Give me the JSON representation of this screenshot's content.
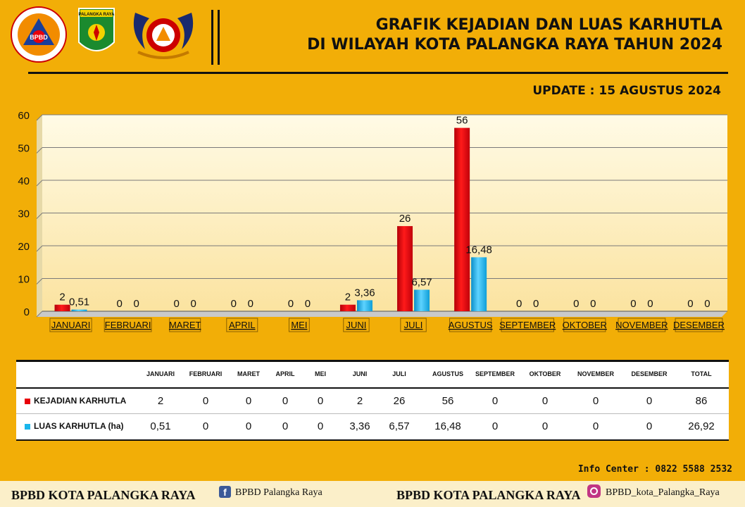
{
  "header": {
    "title_line1": "GRAFIK KEJADIAN DAN LUAS KARHUTLA",
    "title_line2": "DI WILAYAH KOTA PALANGKA RAYA TAHUN 2024",
    "update": "UPDATE : 15 AGUSTUS 2024",
    "logos": [
      {
        "name": "bpbd-logo",
        "text": "BPBD",
        "ring_text": "BADAN PENANGGULANGAN BENCANA DAERAH · KOTA PALANGKA RAYA"
      },
      {
        "name": "palangka-raya-emblem",
        "text": "PALANGKA RAYA"
      },
      {
        "name": "pusdalops-logo",
        "text": "PUSDALOPS"
      }
    ]
  },
  "chart_data": {
    "type": "bar",
    "categories": [
      "JANUARI",
      "FEBRUARI",
      "MARET",
      "APRIL",
      "MEI",
      "JUNI",
      "JULI",
      "AGUSTUS",
      "SEPTEMBER",
      "OKTOBER",
      "NOVEMBER",
      "DESEMBER"
    ],
    "series": [
      {
        "name": "KEJADIAN KARHUTLA",
        "color": "#E8000B",
        "values": [
          2,
          0,
          0,
          0,
          0,
          2,
          26,
          56,
          0,
          0,
          0,
          0
        ],
        "labels": [
          "2",
          "0",
          "0",
          "0",
          "0",
          "2",
          "26",
          "56",
          "0",
          "0",
          "0",
          "0"
        ]
      },
      {
        "name": "LUAS KARHUTLA (ha)",
        "color": "#19B6EC",
        "values": [
          0.51,
          0,
          0,
          0,
          0,
          3.36,
          6.57,
          16.48,
          0,
          0,
          0,
          0
        ],
        "labels": [
          "0,51",
          "0",
          "0",
          "0",
          "0",
          "3,36",
          "6,57",
          "16,48",
          "0",
          "0",
          "0",
          "0"
        ]
      }
    ],
    "ylim": [
      0,
      60
    ],
    "yticks": [
      "0",
      "10",
      "20",
      "30",
      "40",
      "50",
      "60"
    ],
    "grid": true,
    "legend": "table-below"
  },
  "table": {
    "columns": [
      "JANUARI",
      "FEBRUARI",
      "MARET",
      "APRIL",
      "MEI",
      "JUNI",
      "JULI",
      "AGUSTUS",
      "SEPTEMBER",
      "OKTOBER",
      "NOVEMBER",
      "DESEMBER",
      "TOTAL"
    ],
    "rows": [
      {
        "label": "KEJADIAN KARHUTLA",
        "color": "#E8000B",
        "values": [
          "2",
          "0",
          "0",
          "0",
          "0",
          "2",
          "26",
          "56",
          "0",
          "0",
          "0",
          "0",
          "86"
        ]
      },
      {
        "label": "LUAS KARHUTLA (ha)",
        "color": "#19B6EC",
        "values": [
          "0,51",
          "0",
          "0",
          "0",
          "0",
          "3,36",
          "6,57",
          "16,48",
          "0",
          "0",
          "0",
          "0",
          "26,92"
        ]
      }
    ]
  },
  "info_center": "Info Center : 0822 5588 2532",
  "footer": {
    "org_left": "BPBD KOTA PALANGKA RAYA",
    "facebook": "BPBD Palangka Raya",
    "org_right": "BPBD KOTA PALANGKA RAYA",
    "instagram": "BPBD_kota_Palangka_Raya"
  }
}
